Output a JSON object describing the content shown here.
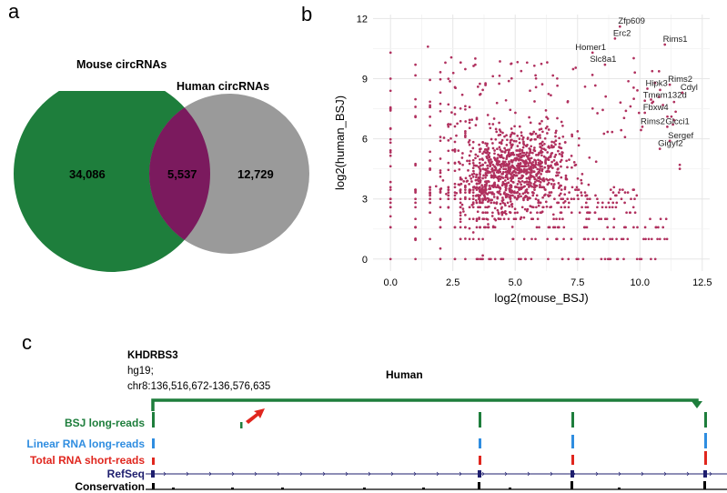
{
  "panels": {
    "a": "a",
    "b": "b",
    "c": "c"
  },
  "venn": {
    "mouse_label": "Mouse circRNAs",
    "human_label": "Human circRNAs",
    "mouse_only": "34,086",
    "overlap": "5,537",
    "human_only": "12,729",
    "colors": {
      "mouse": "#1e7e3c",
      "human": "#9a9a9a",
      "overlap": "#7b1a5e"
    }
  },
  "chart_data": {
    "type": "scatter",
    "xlabel": "log2(mouse_BSJ)",
    "ylabel": "log2(human_BSJ)",
    "xlim": [
      -0.7,
      12.8
    ],
    "ylim": [
      -0.6,
      12.2
    ],
    "x_ticks": [
      0.0,
      2.5,
      5.0,
      7.5,
      10.0,
      12.5
    ],
    "x_tick_labels": [
      "0.0",
      "2.5",
      "5.0",
      "7.5",
      "10.0",
      "12.5"
    ],
    "y_ticks": [
      0,
      3,
      6,
      9,
      12
    ],
    "y_tick_labels": [
      "0",
      "3",
      "6",
      "9",
      "12"
    ],
    "grid": true,
    "point_color": "#b0305e",
    "labeled_points": [
      {
        "label": "Zfp609",
        "x": 9.2,
        "y": 11.6
      },
      {
        "label": "Erc2",
        "x": 9.0,
        "y": 11.0
      },
      {
        "label": "Homer1",
        "x": 8.1,
        "y": 10.3
      },
      {
        "label": "Slc8a1",
        "x": 8.6,
        "y": 9.7
      },
      {
        "label": "Rims1",
        "x": 11.0,
        "y": 10.7
      },
      {
        "label": "Hipk3",
        "x": 10.3,
        "y": 8.5
      },
      {
        "label": "Rims2",
        "x": 11.2,
        "y": 8.7
      },
      {
        "label": "Cdyl",
        "x": 11.7,
        "y": 8.3
      },
      {
        "label": "Tmem132d",
        "x": 10.2,
        "y": 7.9
      },
      {
        "label": "Fbxw4",
        "x": 10.2,
        "y": 7.3
      },
      {
        "label": "Rims2",
        "x": 10.1,
        "y": 6.6
      },
      {
        "label": "Glcci1",
        "x": 11.1,
        "y": 6.6
      },
      {
        "label": "Sergef",
        "x": 11.2,
        "y": 5.9
      },
      {
        "label": "Gigyf2",
        "x": 10.8,
        "y": 5.5
      }
    ]
  },
  "browser": {
    "gene": "KHDRBS3",
    "assembly": "hg19;",
    "coords": "chr8:136,516,672-136,576,635",
    "species": "Human",
    "tracks": [
      {
        "label": "BSJ long-reads",
        "color": "#1e7e3c"
      },
      {
        "label": "Linear RNA long-reads",
        "color": "#2f8de0"
      },
      {
        "label": "Total RNA short-reads",
        "color": "#e0261e"
      },
      {
        "label": "RefSeq",
        "color": "#1e1e6e"
      },
      {
        "label": "Conservation",
        "color": "#000000"
      }
    ],
    "arrow_color": "#e0261e"
  }
}
